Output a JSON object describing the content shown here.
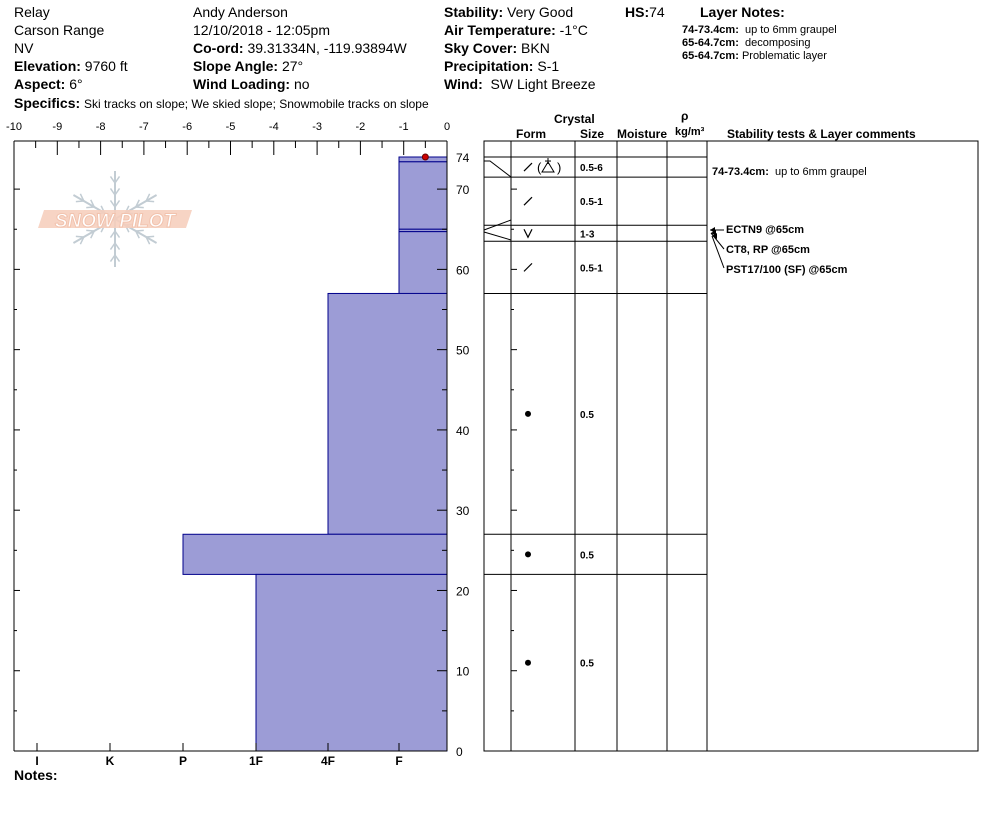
{
  "header": {
    "location": "Relay",
    "range": "Carson Range",
    "state": "NV",
    "elevation_label": "Elevation:",
    "elevation": "9760 ft",
    "aspect_label": "Aspect:",
    "aspect": "6°",
    "observer": "Andy Anderson",
    "datetime": "12/10/2018 - 12:05pm",
    "coord_label": "Co-ord:",
    "coord": "39.31334N, -119.93894W",
    "slope_label": "Slope Angle:",
    "slope": "27°",
    "wind_loading_label": "Wind Loading:",
    "wind_loading": "no",
    "stability_label": "Stability:",
    "stability": "Very Good",
    "air_temp_label": "Air Temperature:",
    "air_temp": "-1°C",
    "sky_label": "Sky Cover:",
    "sky": "BKN",
    "precip_label": "Precipitation:",
    "precip": "S-1",
    "wind_label": "Wind:",
    "wind": "SW Light Breeze",
    "hs_label": "HS:",
    "hs": "74",
    "specifics_label": "Specifics:",
    "specifics": "Ski tracks on slope; We skied slope; Snowmobile tracks on slope",
    "layer_notes_title": "Layer Notes:",
    "layer_notes": [
      {
        "range": "74-73.4cm:",
        "text": "up to 6mm graupel"
      },
      {
        "range": "65-64.7cm:",
        "text": "decomposing"
      },
      {
        "range": "65-64.7cm:",
        "text": "Problematic layer"
      }
    ]
  },
  "columns": {
    "crystal": "Crystal",
    "form": "Form",
    "size": "Size",
    "moisture": "Moisture",
    "rho": "ρ",
    "density_unit": "kg/m³",
    "stability": "Stability tests & Layer comments"
  },
  "comments": {
    "layer_comment_range": "74-73.4cm:",
    "layer_comment_text": "up to 6mm graupel",
    "tests": [
      "ECTN9 @65cm",
      "CT8, RP @65cm",
      "PST17/100 (SF) @65cm"
    ]
  },
  "notes_label": "Notes:",
  "logo_text": "SNOW PILOT",
  "colors": {
    "hardness_fill": "#9C9CD6",
    "hardness_stroke": "#00008B",
    "temp_point": "#CC0000",
    "logo": "#F4C6B2",
    "logo_flake": "#B8C4CC"
  },
  "chart_data": {
    "type": "bar",
    "title": "",
    "top_axis": {
      "label": "",
      "ticks": [
        "-10",
        "-9",
        "-8",
        "-7",
        "-6",
        "-5",
        "-4",
        "-3",
        "-2",
        "-1",
        "0"
      ],
      "range": [
        -10,
        0
      ]
    },
    "bottom_axis": {
      "label": "",
      "ticks": [
        "I",
        "K",
        "P",
        "1F",
        "4F",
        "F"
      ]
    },
    "y_axis": {
      "label": "",
      "ticks": [
        "0",
        "10",
        "20",
        "30",
        "40",
        "50",
        "60",
        "70",
        "74"
      ],
      "range": [
        0,
        74
      ]
    },
    "hardness_layers": [
      {
        "top": 74,
        "bottom": 73.4,
        "hardness": "F"
      },
      {
        "top": 73.4,
        "bottom": 65,
        "hardness": "F"
      },
      {
        "top": 65,
        "bottom": 64.7,
        "hardness": "F"
      },
      {
        "top": 64.7,
        "bottom": 57,
        "hardness": "F"
      },
      {
        "top": 57,
        "bottom": 27,
        "hardness": "4F"
      },
      {
        "top": 27,
        "bottom": 22,
        "hardness": "P"
      },
      {
        "top": 22,
        "bottom": 0,
        "hardness": "1F"
      }
    ],
    "temperature_points": [
      {
        "depth": 74,
        "temp": -0.5
      }
    ],
    "crystal_layers": [
      {
        "top": 74,
        "bottom": 71.5,
        "form": "precipitation-particles+graupel",
        "size": "0.5-6"
      },
      {
        "top": 71.5,
        "bottom": 65.5,
        "form": "decomposing-fragmented",
        "size": "0.5-1"
      },
      {
        "top": 65.5,
        "bottom": 63.5,
        "form": "surface-hoar",
        "size": "1-3"
      },
      {
        "top": 63.5,
        "bottom": 57,
        "form": "decomposing-fragmented",
        "size": "0.5-1"
      },
      {
        "top": 57,
        "bottom": 27,
        "form": "rounded-grains",
        "size": "0.5"
      },
      {
        "top": 27,
        "bottom": 22,
        "form": "rounded-grains",
        "size": "0.5"
      },
      {
        "top": 22,
        "bottom": 0,
        "form": "rounded-grains",
        "size": "0.5"
      }
    ]
  }
}
